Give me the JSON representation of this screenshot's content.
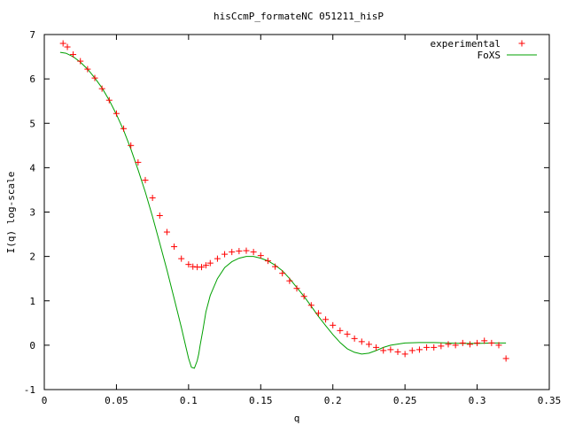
{
  "chart_data": {
    "type": "scatter",
    "title": "hisCcmP_formateNC 051211_hisP",
    "xlabel": "q",
    "ylabel": "I(q) log-scale",
    "xlim": [
      0,
      0.35
    ],
    "ylim": [
      -1,
      7
    ],
    "xticks": [
      0,
      0.05,
      0.1,
      0.15,
      0.2,
      0.25,
      0.3,
      0.35
    ],
    "xtick_labels": [
      "0",
      "0.05",
      "0.1",
      "0.15",
      "0.2",
      "0.25",
      "0.3",
      "0.35"
    ],
    "yticks": [
      -1,
      0,
      1,
      2,
      3,
      4,
      5,
      6,
      7
    ],
    "ytick_labels": [
      "-1",
      "0",
      "1",
      "2",
      "3",
      "4",
      "5",
      "6",
      "7"
    ],
    "grid": false,
    "legend_position": "top-right",
    "series": [
      {
        "name": "experimental",
        "style": "points-plus",
        "color": "#ff0000",
        "x": [
          0.013,
          0.016,
          0.02,
          0.025,
          0.03,
          0.035,
          0.04,
          0.045,
          0.05,
          0.055,
          0.06,
          0.065,
          0.07,
          0.075,
          0.08,
          0.085,
          0.09,
          0.095,
          0.1,
          0.103,
          0.106,
          0.109,
          0.112,
          0.115,
          0.12,
          0.125,
          0.13,
          0.135,
          0.14,
          0.145,
          0.15,
          0.155,
          0.16,
          0.165,
          0.17,
          0.175,
          0.18,
          0.185,
          0.19,
          0.195,
          0.2,
          0.205,
          0.21,
          0.215,
          0.22,
          0.225,
          0.23,
          0.235,
          0.24,
          0.245,
          0.25,
          0.255,
          0.26,
          0.265,
          0.27,
          0.275,
          0.28,
          0.285,
          0.29,
          0.295,
          0.3,
          0.305,
          0.31,
          0.315,
          0.32
        ],
        "y": [
          6.8,
          6.72,
          6.55,
          6.4,
          6.22,
          6.02,
          5.78,
          5.52,
          5.22,
          4.88,
          4.5,
          4.12,
          3.72,
          3.32,
          2.92,
          2.55,
          2.22,
          1.95,
          1.82,
          1.77,
          1.76,
          1.76,
          1.8,
          1.85,
          1.95,
          2.05,
          2.1,
          2.12,
          2.13,
          2.1,
          2.02,
          1.9,
          1.77,
          1.62,
          1.45,
          1.28,
          1.1,
          0.9,
          0.72,
          0.58,
          0.45,
          0.33,
          0.25,
          0.15,
          0.08,
          0.02,
          -0.05,
          -0.12,
          -0.1,
          -0.15,
          -0.2,
          -0.12,
          -0.1,
          -0.05,
          -0.05,
          -0.02,
          0.02,
          0,
          0.05,
          0.02,
          0.05,
          0.1,
          0.05,
          0,
          -0.3
        ]
      },
      {
        "name": "FoXS",
        "style": "line",
        "color": "#00a000",
        "x": [
          0.011,
          0.015,
          0.02,
          0.025,
          0.03,
          0.035,
          0.04,
          0.045,
          0.05,
          0.055,
          0.06,
          0.065,
          0.07,
          0.075,
          0.08,
          0.085,
          0.09,
          0.095,
          0.098,
          0.1,
          0.102,
          0.104,
          0.106,
          0.107,
          0.108,
          0.11,
          0.112,
          0.115,
          0.12,
          0.125,
          0.13,
          0.135,
          0.14,
          0.145,
          0.15,
          0.155,
          0.16,
          0.165,
          0.17,
          0.175,
          0.18,
          0.185,
          0.19,
          0.195,
          0.2,
          0.205,
          0.21,
          0.215,
          0.22,
          0.225,
          0.23,
          0.235,
          0.24,
          0.25,
          0.26,
          0.27,
          0.28,
          0.29,
          0.3,
          0.31,
          0.32
        ],
        "y": [
          6.6,
          6.58,
          6.5,
          6.38,
          6.22,
          6.02,
          5.8,
          5.52,
          5.2,
          4.84,
          4.42,
          3.95,
          3.45,
          2.9,
          2.3,
          1.7,
          1.05,
          0.4,
          -0.02,
          -0.3,
          -0.5,
          -0.52,
          -0.35,
          -0.2,
          0,
          0.35,
          0.75,
          1.12,
          1.5,
          1.75,
          1.88,
          1.96,
          2.0,
          2.0,
          1.96,
          1.9,
          1.8,
          1.68,
          1.5,
          1.3,
          1.1,
          0.88,
          0.65,
          0.44,
          0.24,
          0.06,
          -0.08,
          -0.16,
          -0.2,
          -0.18,
          -0.12,
          -0.05,
          0,
          0.05,
          0.06,
          0.06,
          0.05,
          0.04,
          0.04,
          0.05,
          0.05
        ]
      }
    ]
  }
}
